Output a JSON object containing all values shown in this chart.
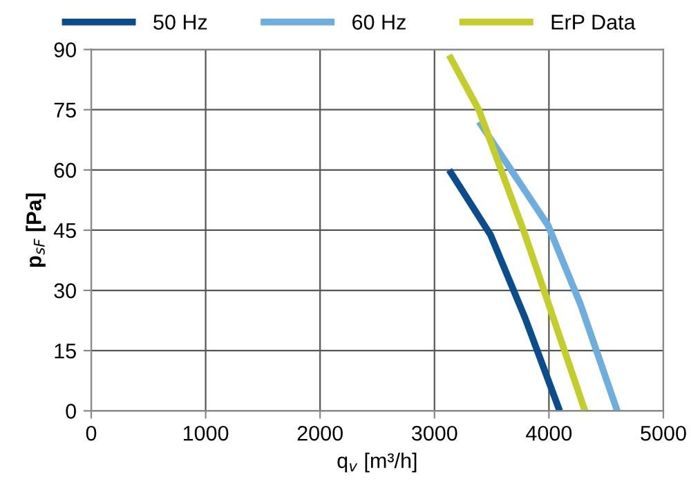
{
  "chart_data": {
    "type": "line",
    "xlabel": "q$_{v}$ [m³/h]",
    "ylabel": "p$_{sF}$ [Pa]",
    "xlim": [
      0,
      5000
    ],
    "xticks": [
      0,
      1000,
      2000,
      3000,
      4000,
      5000
    ],
    "ylim": [
      0,
      90
    ],
    "yticks": [
      0,
      15,
      30,
      45,
      60,
      75,
      90
    ],
    "grid": true,
    "legend": "top",
    "marker": "none",
    "series": [
      {
        "name": "50 Hz",
        "color": "#0b4d8c",
        "x": [
          3128,
          3220,
          3490,
          3792,
          4094
        ],
        "values": [
          60,
          55.9,
          43.8,
          23.1,
          0
        ]
      },
      {
        "name": "60 Hz",
        "color": "#6eaede",
        "x": [
          3390,
          3994,
          4275,
          4597
        ],
        "values": [
          72,
          46.1,
          26.6,
          0
        ]
      },
      {
        "name": "ErP Data",
        "color": "#c3cd2c",
        "x": [
          3128,
          3390,
          3792,
          4315
        ],
        "values": [
          88.6,
          74.8,
          43.8,
          0
        ]
      }
    ]
  }
}
